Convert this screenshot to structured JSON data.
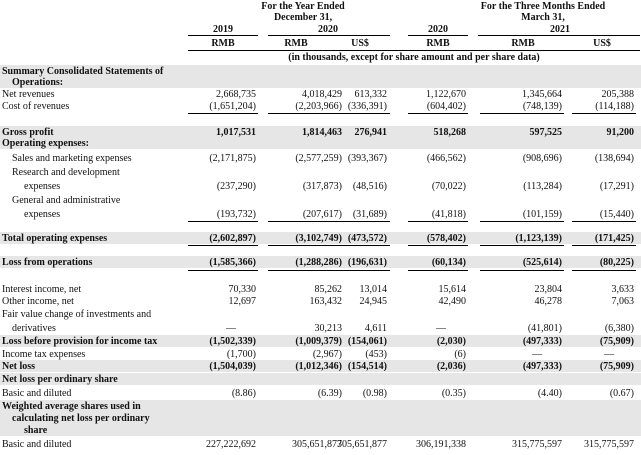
{
  "header": {
    "year_group": "For the Year Ended\nDecember 31,",
    "year_group_l1": "For the Year Ended",
    "year_group_l2": "December 31,",
    "three_group_l1": "For the Three Months Ended",
    "three_group_l2": "March 31,",
    "years": [
      "2019",
      "2020",
      "2020",
      "2021"
    ],
    "currencies": [
      "RMB",
      "RMB",
      "US$",
      "RMB",
      "RMB",
      "US$"
    ],
    "note": "(in thousands, except for share amount and per share data)"
  },
  "rows": [
    {
      "label": "Summary Consolidated Statements of",
      "bold": true,
      "values": []
    },
    {
      "label": "Operations:",
      "bold": true,
      "indent": 1,
      "values": []
    },
    {
      "label": "Net revenues",
      "values": [
        "2,668,735",
        "4,018,429",
        "613,332",
        "1,122,670",
        "1,345,664",
        "205,388"
      ]
    },
    {
      "label": "Cost of revenues",
      "values": [
        "(1,651,204)",
        "(2,203,966)",
        "(336,391)",
        "(604,402)",
        "(748,139)",
        "(114,188)"
      ]
    },
    {
      "label": "Gross profit",
      "bold": true,
      "values": [
        "1,017,531",
        "1,814,463",
        "276,941",
        "518,268",
        "597,525",
        "91,200"
      ]
    },
    {
      "label": "Operating expenses:",
      "bold": true,
      "values": []
    },
    {
      "label": "Sales and marketing expenses",
      "indent": 1,
      "values": [
        "(2,171,875)",
        "(2,577,259)",
        "(393,367)",
        "(466,562)",
        "(908,696)",
        "(138,694)"
      ]
    },
    {
      "label": "Research and development",
      "indent": 1,
      "values": []
    },
    {
      "label": "expenses",
      "indent": 2,
      "values": [
        "(237,290)",
        "(317,873)",
        "(48,516)",
        "(70,022)",
        "(113,284)",
        "(17,291)"
      ]
    },
    {
      "label": "General and administrative",
      "indent": 1,
      "values": []
    },
    {
      "label": "expenses",
      "indent": 2,
      "values": [
        "(193,732)",
        "(207,617)",
        "(31,689)",
        "(41,818)",
        "(101,159)",
        "(15,440)"
      ]
    },
    {
      "label": "Total operating expenses",
      "bold": true,
      "values": [
        "(2,602,897)",
        "(3,102,749)",
        "(473,572)",
        "(578,402)",
        "(1,123,139)",
        "(171,425)"
      ]
    },
    {
      "label": "Loss from operations",
      "bold": true,
      "values": [
        "(1,585,366)",
        "(1,288,286)",
        "(196,631)",
        "(60,134)",
        "(525,614)",
        "(80,225)"
      ]
    },
    {
      "label": "Interest income, net",
      "values": [
        "70,330",
        "85,262",
        "13,014",
        "15,614",
        "23,804",
        "3,633"
      ]
    },
    {
      "label": "Other income, net",
      "values": [
        "12,697",
        "163,432",
        "24,945",
        "42,490",
        "46,278",
        "7,063"
      ]
    },
    {
      "label": "Fair value change of investments and",
      "values": []
    },
    {
      "label": "derivatives",
      "indent": 1,
      "values": [
        "—",
        "30,213",
        "4,611",
        "—",
        "(41,801)",
        "(6,380)"
      ]
    },
    {
      "label": "Loss before provision for income tax",
      "bold": true,
      "values": [
        "(1,502,339)",
        "(1,009,379)",
        "(154,061)",
        "(2,030)",
        "(497,333)",
        "(75,909)"
      ]
    },
    {
      "label": "Income tax expenses",
      "values": [
        "(1,700)",
        "(2,967)",
        "(453)",
        "(6)",
        "—",
        "—"
      ]
    },
    {
      "label": "Net loss",
      "bold": true,
      "values": [
        "(1,504,039)",
        "(1,012,346)",
        "(154,514)",
        "(2,036)",
        "(497,333)",
        "(75,909)"
      ]
    },
    {
      "label": "Net loss per ordinary share",
      "bold": true,
      "values": []
    },
    {
      "label": "Basic and diluted",
      "values": [
        "(8.86)",
        "(6.39)",
        "(0.98)",
        "(0.35)",
        "(4.40)",
        "(0.67)"
      ]
    },
    {
      "label": "Weighted average shares used in",
      "bold": true,
      "values": []
    },
    {
      "label": "calculating net loss per ordinary",
      "bold": true,
      "indent": 1,
      "values": []
    },
    {
      "label": "share",
      "bold": true,
      "indent": 2,
      "values": []
    },
    {
      "label": "Basic and diluted",
      "values": [
        "227,222,692",
        "305,651,877",
        "305,651,877",
        "306,191,338",
        "315,775,597",
        "315,775,597"
      ]
    }
  ]
}
